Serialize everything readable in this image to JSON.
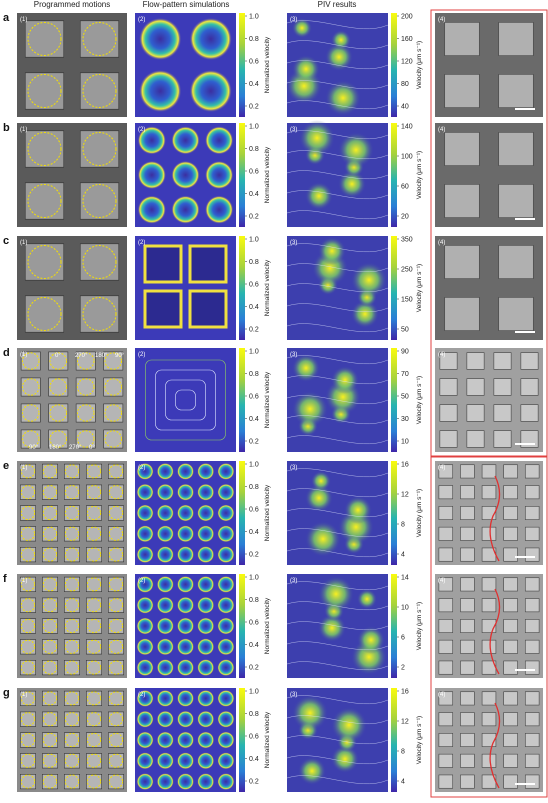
{
  "headers": [
    "Programmed motions",
    "Flow-pattern simulations",
    "PIV results"
  ],
  "rows": [
    {
      "letter": "a",
      "panels": [
        "(1)",
        "(2)",
        "(3)",
        "(4)"
      ],
      "sim_ticks": [
        "1.0",
        "0.8",
        "0.6",
        "0.4",
        "0.2"
      ],
      "sim_label": "Normalized velocity",
      "piv_ticks": [
        "200",
        "160",
        "120",
        "80",
        "40"
      ],
      "piv_label": "Velocity (μm s⁻¹)"
    },
    {
      "letter": "b",
      "panels": [
        "(1)",
        "(2)",
        "(3)",
        "(4)"
      ],
      "sim_ticks": [
        "1.0",
        "0.8",
        "0.6",
        "0.4",
        "0.2"
      ],
      "sim_label": "Normalized velocity",
      "piv_ticks": [
        "140",
        "100",
        "60",
        "20"
      ],
      "piv_label": "Velocity (μm s⁻¹)"
    },
    {
      "letter": "c",
      "panels": [
        "(1)",
        "(2)",
        "(3)",
        "(4)"
      ],
      "sim_ticks": [
        "1.0",
        "0.8",
        "0.6",
        "0.4",
        "0.2"
      ],
      "sim_label": "Normalized velocity",
      "piv_ticks": [
        "350",
        "250",
        "150",
        "50"
      ],
      "piv_label": "Velocity (μm s⁻¹)"
    },
    {
      "letter": "d",
      "panels": [
        "(1)",
        "(2)",
        "(3)",
        "(4)"
      ],
      "sim_ticks": [
        "1.0",
        "0.8",
        "0.6",
        "0.4",
        "0.2"
      ],
      "sim_label": "Normalized velocity",
      "piv_ticks": [
        "90",
        "70",
        "50",
        "30",
        "10"
      ],
      "piv_label": "Velocity (μm s⁻¹)",
      "angles_top": [
        "0°",
        "270°",
        "180°",
        "90°"
      ],
      "angles_bottom": [
        "90°",
        "180°",
        "270°",
        "0°"
      ]
    },
    {
      "letter": "e",
      "panels": [
        "(1)",
        "(2)",
        "(3)",
        "(4)"
      ],
      "sim_ticks": [
        "1.0",
        "0.8",
        "0.6",
        "0.4",
        "0.2"
      ],
      "sim_label": "Normalized velocity",
      "piv_ticks": [
        "16",
        "12",
        "8",
        "4"
      ],
      "piv_label": "Velocity (μm s⁻¹)"
    },
    {
      "letter": "f",
      "panels": [
        "(1)",
        "(2)",
        "(3)",
        "(4)"
      ],
      "sim_ticks": [
        "1.0",
        "0.8",
        "0.6",
        "0.4",
        "0.2"
      ],
      "sim_label": "Normalized velocity",
      "piv_ticks": [
        "14",
        "10",
        "6",
        "2"
      ],
      "piv_label": "Velocity (μm s⁻¹)"
    },
    {
      "letter": "g",
      "panels": [
        "(1)",
        "(2)",
        "(3)",
        "(4)"
      ],
      "sim_ticks": [
        "1.0",
        "0.8",
        "0.6",
        "0.4",
        "0.2"
      ],
      "sim_label": "Normalized velocity",
      "piv_ticks": [
        "16",
        "12",
        "8",
        "4"
      ],
      "piv_label": "Velocity (μm s⁻¹)"
    }
  ]
}
